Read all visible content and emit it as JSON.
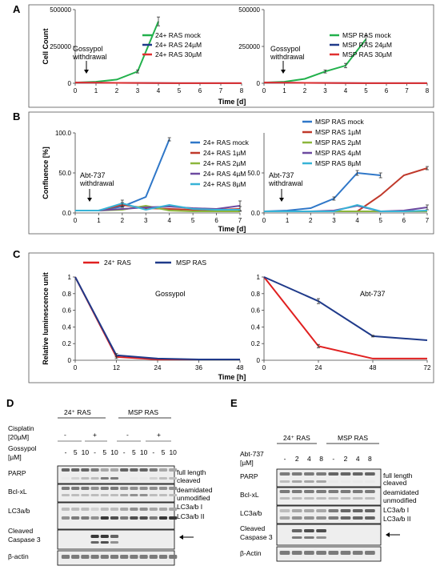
{
  "panels": {
    "A": "A",
    "B": "B",
    "C": "C",
    "D": "D",
    "E": "E"
  },
  "chart_data": [
    {
      "id": "A-left",
      "type": "line",
      "ylabel": "Cell Count",
      "xlabel": "",
      "x": [
        0,
        1,
        2,
        3,
        4,
        5,
        6,
        7,
        8
      ],
      "ylim": [
        0,
        500000
      ],
      "yticks": [
        "0",
        "250000",
        "500000"
      ],
      "annotation": [
        "Gossypol",
        "withdrawal"
      ],
      "series": [
        {
          "name": "24+ RAS mock",
          "color": "#22b14c",
          "x": [
            0,
            1,
            2,
            3,
            4
          ],
          "values": [
            5000,
            10000,
            25000,
            80000,
            420000
          ],
          "err": [
            0,
            0,
            0,
            10000,
            30000
          ]
        },
        {
          "name": "24+ RAS  24µM",
          "color": "#1f3a8a",
          "x": [
            0,
            1,
            2,
            3,
            4,
            5,
            6,
            7,
            8
          ],
          "values": [
            5000,
            4000,
            3000,
            2000,
            1500,
            1000,
            1000,
            1000,
            1000
          ],
          "err": [
            0,
            0,
            0,
            0,
            0,
            0,
            0,
            0,
            0
          ]
        },
        {
          "name": "24+ RAS  30µM",
          "color": "#e03030",
          "x": [
            0,
            1,
            2,
            3,
            4,
            5,
            6,
            7,
            8
          ],
          "values": [
            5000,
            4000,
            3000,
            2000,
            1500,
            1000,
            1000,
            1000,
            1000
          ],
          "err": [
            0,
            0,
            0,
            0,
            0,
            0,
            0,
            0,
            0
          ]
        }
      ]
    },
    {
      "id": "A-right",
      "type": "line",
      "ylabel": "",
      "xlabel": "",
      "x": [
        0,
        1,
        2,
        3,
        4,
        5,
        6,
        7,
        8
      ],
      "ylim": [
        0,
        500000
      ],
      "yticks": [
        "0",
        "250000",
        "500000"
      ],
      "annotation": [
        "Gossypol",
        "withdrawal"
      ],
      "series": [
        {
          "name": "MSP RAS mock",
          "color": "#22b14c",
          "x": [
            0,
            1,
            2,
            3,
            4,
            5
          ],
          "values": [
            5000,
            10000,
            30000,
            80000,
            120000,
            300000
          ],
          "err": [
            0,
            0,
            0,
            10000,
            15000,
            25000
          ]
        },
        {
          "name": "MSP RAS  24µM",
          "color": "#1f3a8a",
          "x": [
            0,
            1,
            2,
            3,
            4,
            5,
            6,
            7,
            8
          ],
          "values": [
            5000,
            4000,
            3000,
            2000,
            1500,
            1000,
            1000,
            1000,
            1000
          ],
          "err": [
            0,
            0,
            0,
            0,
            0,
            0,
            0,
            0,
            0
          ]
        },
        {
          "name": "MSP RAS  30µM",
          "color": "#e03030",
          "x": [
            0,
            1,
            2,
            3,
            4,
            5,
            6,
            7,
            8
          ],
          "values": [
            5000,
            4000,
            3000,
            2000,
            1500,
            1000,
            1000,
            1000,
            1000
          ],
          "err": [
            0,
            0,
            0,
            0,
            0,
            0,
            0,
            0,
            0
          ]
        }
      ]
    },
    {
      "id": "B-left",
      "type": "line",
      "ylabel": "Confluence [%]",
      "xlabel": "",
      "x": [
        0,
        1,
        2,
        3,
        4,
        5,
        6,
        7
      ],
      "ylim": [
        0,
        100
      ],
      "yticks": [
        "0.0",
        "50.0",
        "100.0"
      ],
      "annotation": [
        "Abt-737",
        "withdrawal"
      ],
      "series": [
        {
          "name": "24+ RAS mock",
          "color": "#2f77c8",
          "x": [
            0,
            1,
            2,
            3,
            4
          ],
          "values": [
            3,
            3,
            8,
            20,
            92
          ],
          "err": [
            0,
            0,
            0,
            0,
            2
          ]
        },
        {
          "name": "24+ RAS 1µM",
          "color": "#c0392b",
          "x": [
            0,
            1,
            2,
            3,
            4,
            5,
            6,
            7
          ],
          "values": [
            3,
            3,
            10,
            6,
            5,
            4,
            4,
            5
          ],
          "err": [
            0,
            0,
            3,
            2,
            0,
            0,
            0,
            3
          ]
        },
        {
          "name": "24+ RAS 2µM",
          "color": "#8cb63c",
          "x": [
            0,
            1,
            2,
            3,
            4,
            5,
            6,
            7
          ],
          "values": [
            3,
            3,
            4,
            9,
            3,
            2,
            2,
            2
          ],
          "err": [
            0,
            0,
            0,
            0,
            0,
            0,
            0,
            0
          ]
        },
        {
          "name": "24+ RAS 4µM",
          "color": "#6d4aa0",
          "x": [
            0,
            1,
            2,
            3,
            4,
            5,
            6,
            7
          ],
          "values": [
            3,
            3,
            5,
            7,
            8,
            6,
            5,
            9
          ],
          "err": [
            0,
            0,
            0,
            0,
            0,
            0,
            0,
            6
          ]
        },
        {
          "name": "24+ RAS 8µM",
          "color": "#37b3d6",
          "x": [
            0,
            1,
            2,
            3,
            4,
            5,
            6,
            7
          ],
          "values": [
            3,
            3,
            12,
            4,
            10,
            5,
            4,
            4
          ],
          "err": [
            0,
            0,
            4,
            0,
            0,
            0,
            0,
            0
          ]
        }
      ]
    },
    {
      "id": "B-right",
      "type": "line",
      "ylabel": "",
      "xlabel": "",
      "x": [
        0,
        1,
        2,
        3,
        4,
        5,
        6,
        7
      ],
      "ylim": [
        0,
        100
      ],
      "yticks": [
        "0.0",
        "50.0"
      ],
      "annotation": [
        "Abt-737",
        "withdrawal"
      ],
      "series": [
        {
          "name": "MSP RAS mock",
          "color": "#2f77c8",
          "x": [
            0,
            1,
            2,
            3,
            4,
            5
          ],
          "values": [
            2,
            3,
            6,
            18,
            50,
            47
          ],
          "err": [
            0,
            0,
            0,
            2,
            3,
            3
          ]
        },
        {
          "name": "MSP RAS 1µM",
          "color": "#c0392b",
          "x": [
            0,
            1,
            2,
            3,
            4,
            5,
            6,
            7
          ],
          "values": [
            2,
            2,
            2,
            2,
            2,
            22,
            47,
            56
          ],
          "err": [
            0,
            0,
            0,
            0,
            0,
            0,
            0,
            2
          ]
        },
        {
          "name": "MSP RAS 2µM",
          "color": "#8cb63c",
          "x": [
            0,
            1,
            2,
            3,
            4,
            5,
            6,
            7
          ],
          "values": [
            2,
            2,
            2,
            2,
            2,
            2,
            2,
            2
          ],
          "err": [
            0,
            0,
            0,
            0,
            0,
            0,
            0,
            0
          ]
        },
        {
          "name": "MSP RAS 4µM",
          "color": "#6d4aa0",
          "x": [
            0,
            1,
            2,
            3,
            4,
            5,
            6,
            7
          ],
          "values": [
            2,
            2,
            2,
            3,
            9,
            2,
            3,
            7
          ],
          "err": [
            0,
            0,
            0,
            0,
            0,
            0,
            0,
            3
          ]
        },
        {
          "name": "MSP RAS 8µM",
          "color": "#37b3d6",
          "x": [
            0,
            1,
            2,
            3,
            4,
            5,
            6,
            7
          ],
          "values": [
            2,
            2,
            2,
            2,
            10,
            2,
            2,
            3
          ],
          "err": [
            0,
            0,
            0,
            0,
            0,
            0,
            0,
            0
          ]
        }
      ]
    },
    {
      "id": "C-left",
      "type": "line",
      "ylabel": "Relative luminescence unit",
      "xlabel": "",
      "title": "Gossypol",
      "x": [
        0,
        12,
        24,
        36,
        48
      ],
      "ylim": [
        0,
        1
      ],
      "yticks": [
        "0",
        "0.2",
        "0.4",
        "0.6",
        "0.8",
        "1"
      ],
      "series": [
        {
          "name": "24⁺ RAS",
          "color": "#e02020",
          "x": [
            0,
            12,
            24,
            36,
            48
          ],
          "values": [
            1,
            0.04,
            0.01,
            0.01,
            0.01
          ],
          "err": [
            0,
            0.02,
            0,
            0,
            0
          ]
        },
        {
          "name": "MSP RAS",
          "color": "#1f3a8a",
          "x": [
            0,
            12,
            24,
            36,
            48
          ],
          "values": [
            1,
            0.06,
            0.02,
            0.01,
            0.01
          ],
          "err": [
            0,
            0.02,
            0,
            0,
            0
          ]
        }
      ]
    },
    {
      "id": "C-right",
      "type": "line",
      "ylabel": "",
      "xlabel": "",
      "title": "Abt-737",
      "x": [
        0,
        24,
        48,
        72
      ],
      "ylim": [
        0,
        1
      ],
      "yticks": [
        "0",
        "0.2",
        "0.4",
        "0.6",
        "0.8",
        "1"
      ],
      "series": [
        {
          "name": "24⁺ RAS",
          "color": "#e02020",
          "x": [
            0,
            24,
            48,
            72
          ],
          "values": [
            1,
            0.17,
            0.02,
            0.02
          ],
          "err": [
            0,
            0.02,
            0,
            0
          ]
        },
        {
          "name": "MSP RAS",
          "color": "#1f3a8a",
          "x": [
            0,
            24,
            48,
            72
          ],
          "values": [
            1,
            0.71,
            0.29,
            0.24
          ],
          "err": [
            0,
            0.03,
            0.01,
            0
          ]
        }
      ]
    }
  ],
  "axis_titles": {
    "A_time": "Time [d]",
    "B_time": "Time [d]",
    "C_time": "Time [h]"
  },
  "blot_D": {
    "group1": "24⁺ RAS",
    "group2": "MSP RAS",
    "cisplatin": [
      "Cisplatin",
      "[20µM]"
    ],
    "cis_minus": "-",
    "cis_plus": "+",
    "gossypol": [
      "Gossypol",
      "[µM]"
    ],
    "lanes": [
      "-",
      "5",
      "10",
      "-",
      "5",
      "10",
      "-",
      "5",
      "10",
      "-",
      "5",
      "10"
    ],
    "rows": [
      "PARP",
      "Bcl-xL",
      "LC3a/b",
      "Cleaved",
      "Caspase 3",
      "β-actin"
    ],
    "right_labels": [
      "full length",
      "cleaved",
      "deamidated",
      "unmodified",
      "LC3a/b I",
      "LC3a/b II"
    ]
  },
  "blot_E": {
    "group1": "24⁺ RAS",
    "group2": "MSP RAS",
    "abt": [
      "Abt-737",
      "[µM]"
    ],
    "lanes": [
      "-",
      "2",
      "4",
      "8",
      "-",
      "2",
      "4",
      "8"
    ],
    "rows": [
      "PARP",
      "Bcl-xL",
      "LC3a/b",
      "Cleaved",
      "Caspase 3",
      "β-Actin"
    ],
    "right_labels": [
      "full length",
      "cleaved",
      "deamidated",
      "unmodified",
      "LC3a/b I",
      "LC3a/b II"
    ]
  }
}
